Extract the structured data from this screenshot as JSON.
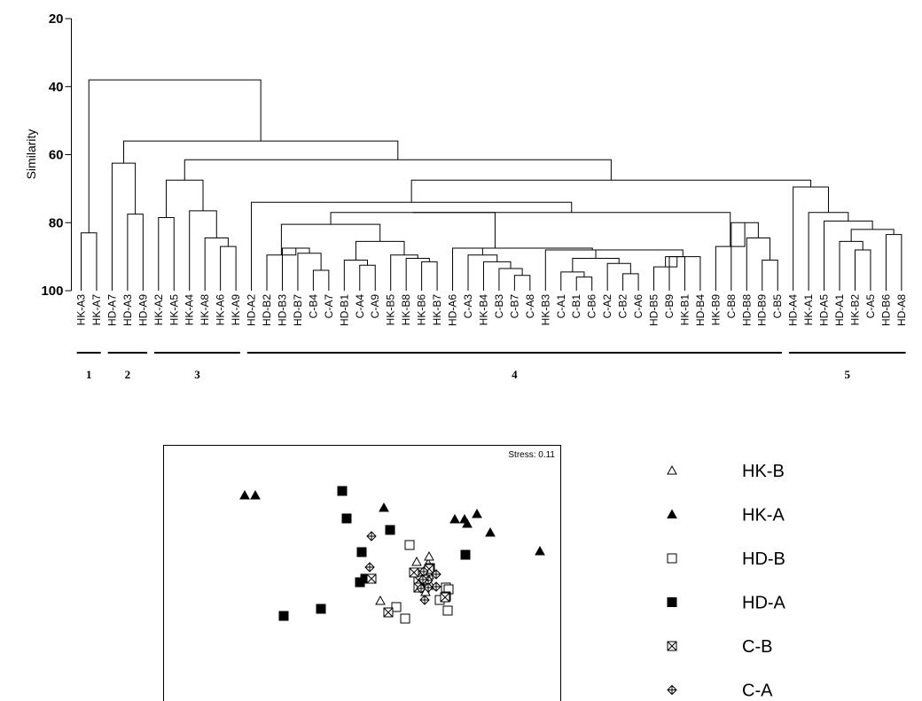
{
  "chart_data": [
    {
      "type": "dendrogram",
      "ylabel": "Similarity",
      "ylim": [
        20,
        100
      ],
      "yticks": [
        20,
        40,
        60,
        80,
        100
      ],
      "leaves": [
        "HK-A3",
        "HK-A7",
        "HD-A7",
        "HD-A3",
        "HD-A9",
        "HK-A2",
        "HK-A5",
        "HK-A4",
        "HK-A8",
        "HK-A6",
        "HK-A9",
        "HD-A2",
        "HD-B2",
        "HD-B3",
        "HD-B7",
        "C-B4",
        "C-A7",
        "HD-B1",
        "C-A4",
        "C-A9",
        "HK-B5",
        "HK-B8",
        "HK-B6",
        "HK-B7",
        "HD-A6",
        "C-A3",
        "HK-B4",
        "C-B3",
        "C-B7",
        "C-A8",
        "HK-B3",
        "C-A1",
        "C-B1",
        "C-B6",
        "C-A2",
        "C-B2",
        "C-A6",
        "HD-B5",
        "C-B9",
        "HK-B1",
        "HD-B4",
        "HK-B9",
        "C-B8",
        "HD-B8",
        "HD-B9",
        "C-B5",
        "HD-A4",
        "HK-A1",
        "HD-A5",
        "HD-A1",
        "HK-B2",
        "C-A5",
        "HD-B6",
        "HD-A8"
      ],
      "merges": [
        [
          0,
          1,
          83
        ],
        [
          3,
          4,
          77.5
        ],
        [
          2,
          55,
          62.5
        ],
        [
          9,
          10,
          87
        ],
        [
          8,
          57,
          84.5
        ],
        [
          7,
          58,
          76.5
        ],
        [
          5,
          6,
          78.5
        ],
        [
          60,
          59,
          67.5
        ],
        [
          15,
          16,
          94
        ],
        [
          14,
          62,
          89
        ],
        [
          13,
          63,
          87.5
        ],
        [
          12,
          64,
          89.5
        ],
        [
          18,
          19,
          92.5
        ],
        [
          17,
          66,
          91
        ],
        [
          22,
          23,
          91.5
        ],
        [
          21,
          68,
          90.5
        ],
        [
          20,
          69,
          89.5
        ],
        [
          67,
          70,
          85.5
        ],
        [
          65,
          71,
          80.5
        ],
        [
          28,
          29,
          95.5
        ],
        [
          27,
          73,
          93.5
        ],
        [
          26,
          74,
          91.5
        ],
        [
          25,
          75,
          89.5
        ],
        [
          32,
          33,
          96
        ],
        [
          31,
          77,
          94.5
        ],
        [
          35,
          36,
          95
        ],
        [
          34,
          79,
          92
        ],
        [
          78,
          80,
          90.5
        ],
        [
          38,
          39,
          90
        ],
        [
          37,
          82,
          93
        ],
        [
          40,
          83,
          90
        ],
        [
          81,
          84,
          88
        ],
        [
          30,
          85,
          88
        ],
        [
          76,
          86,
          87.5
        ],
        [
          24,
          87,
          87.5
        ],
        [
          72,
          88,
          77
        ],
        [
          44,
          45,
          91
        ],
        [
          43,
          90,
          84.5
        ],
        [
          42,
          91,
          80
        ],
        [
          41,
          92,
          87
        ],
        [
          89,
          93,
          77
        ],
        [
          11,
          94,
          74
        ],
        [
          50,
          51,
          88
        ],
        [
          49,
          96,
          85.5
        ],
        [
          52,
          53,
          83.5
        ],
        [
          97,
          98,
          82
        ],
        [
          48,
          99,
          79.5
        ],
        [
          47,
          100,
          77
        ],
        [
          46,
          101,
          69.5
        ],
        [
          95,
          102,
          67.5
        ],
        [
          61,
          103,
          61.5
        ],
        [
          56,
          104,
          56
        ],
        [
          54,
          105,
          38
        ]
      ],
      "groups": [
        {
          "label": "1",
          "from": 0,
          "to": 1
        },
        {
          "label": "2",
          "from": 2,
          "to": 4
        },
        {
          "label": "3",
          "from": 5,
          "to": 10
        },
        {
          "label": "4",
          "from": 11,
          "to": 45
        },
        {
          "label": "5",
          "from": 46,
          "to": 53
        }
      ]
    },
    {
      "type": "scatter",
      "annotation": "Stress: 0.11",
      "series": [
        {
          "name": "HK-B",
          "marker": "triangle-open",
          "points": [
            [
              38,
              18
            ],
            [
              51,
              16
            ],
            [
              52,
              24
            ],
            [
              47,
              -12
            ],
            [
              48,
              -16
            ],
            [
              49,
              -8
            ],
            [
              -3,
              -26
            ],
            [
              54,
              -9
            ],
            [
              52,
              3
            ]
          ]
        },
        {
          "name": "HK-A",
          "marker": "triangle-filled",
          "points": [
            [
              -156,
              93
            ],
            [
              -144,
              93
            ],
            [
              1,
              79
            ],
            [
              81,
              66
            ],
            [
              92,
              66
            ],
            [
              95,
              61
            ],
            [
              106,
              72
            ],
            [
              121,
              51
            ],
            [
              177,
              30
            ]
          ]
        },
        {
          "name": "HD-B",
          "marker": "square-open",
          "points": [
            [
              30,
              37
            ],
            [
              43,
              2
            ],
            [
              53,
              11
            ],
            [
              64,
              -25
            ],
            [
              73,
              -37
            ],
            [
              71,
              -11
            ],
            [
              74,
              -13
            ],
            [
              71,
              -21
            ],
            [
              25,
              -46
            ],
            [
              15,
              -33
            ]
          ]
        },
        {
          "name": "HD-A",
          "marker": "square-filled",
          "points": [
            [
              -46,
              98
            ],
            [
              -41,
              67
            ],
            [
              8,
              54
            ],
            [
              -24,
              29
            ],
            [
              -20,
              -1
            ],
            [
              -26,
              -5
            ],
            [
              -70,
              -35
            ],
            [
              -112,
              -43
            ],
            [
              42,
              -4
            ],
            [
              93,
              26
            ]
          ]
        },
        {
          "name": "C-B",
          "marker": "square-cross",
          "points": [
            [
              -13,
              -1
            ],
            [
              43,
              6
            ],
            [
              52,
              10
            ],
            [
              40,
              -3
            ],
            [
              48,
              -2
            ],
            [
              40,
              -11
            ],
            [
              6,
              -39
            ],
            [
              70,
              -22
            ],
            [
              35,
              6
            ]
          ]
        },
        {
          "name": "C-A",
          "marker": "crossed-diamond",
          "points": [
            [
              -13,
              47
            ],
            [
              -15,
              12
            ],
            [
              46,
              7
            ],
            [
              51,
              -3
            ],
            [
              43,
              -12
            ],
            [
              45,
              -2
            ],
            [
              60,
              4
            ],
            [
              51,
              -11
            ],
            [
              47,
              -25
            ],
            [
              60,
              -10
            ]
          ]
        }
      ]
    }
  ]
}
